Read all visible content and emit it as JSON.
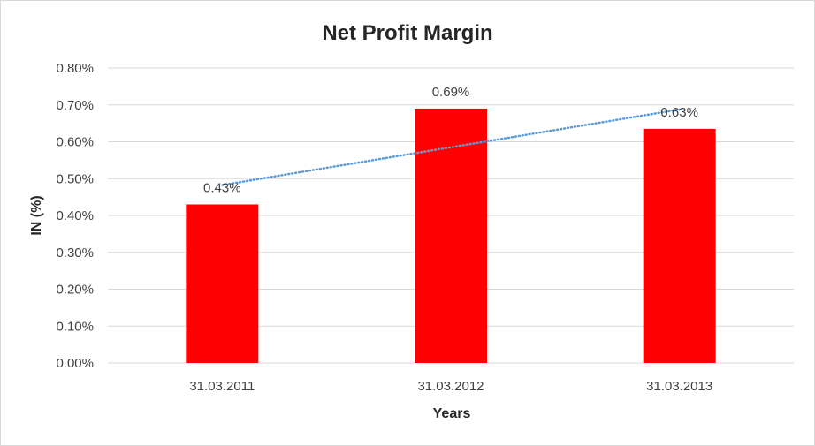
{
  "chart_data": {
    "type": "bar",
    "title": "Net Profit Margin",
    "xlabel": "Years",
    "ylabel": "IN (%)",
    "categories": [
      "31.03.2011",
      "31.03.2012",
      "31.03.2013"
    ],
    "values": [
      0.43,
      0.69,
      0.635
    ],
    "data_labels": [
      "0.43%",
      "0.69%",
      "0.63%"
    ],
    "ylim": [
      0,
      0.8
    ],
    "yticks": [
      0,
      0.1,
      0.2,
      0.3,
      0.4,
      0.5,
      0.6,
      0.7,
      0.8
    ],
    "ytick_labels": [
      "0.00%",
      "0.10%",
      "0.20%",
      "0.30%",
      "0.40%",
      "0.50%",
      "0.60%",
      "0.70%",
      "0.80%"
    ],
    "grid": true,
    "legend": "none",
    "trendline": "linear",
    "colors": {
      "bar": "#ff0000",
      "trendline": "#5b9bd5",
      "grid": "#d9d9d9",
      "text": "#404040",
      "title": "#262626"
    }
  }
}
